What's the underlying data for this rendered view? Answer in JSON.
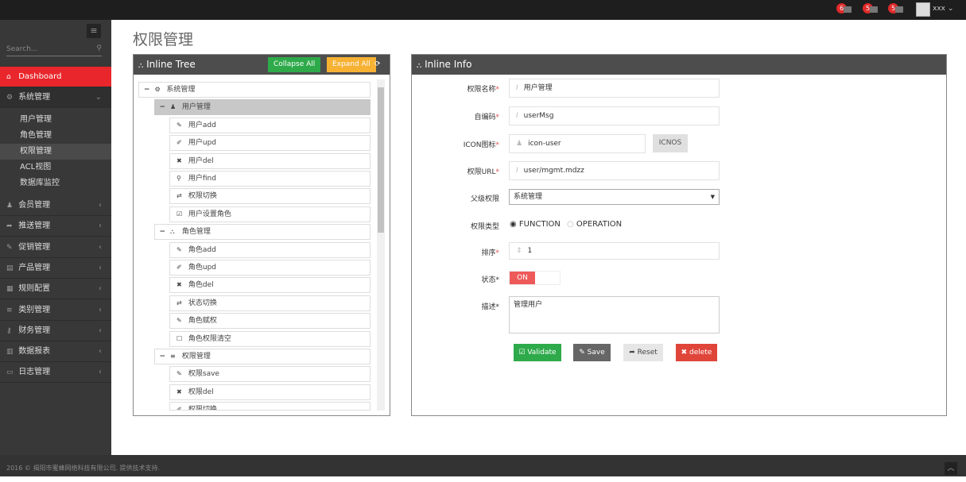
{
  "topbar": {
    "notifications": [
      {
        "count": "6",
        "icon": "bell-icon"
      },
      {
        "count": "5",
        "icon": "envelope-icon"
      },
      {
        "count": "5",
        "icon": "tasks-icon"
      }
    ],
    "user": "xxx"
  },
  "sidebar": {
    "search_placeholder": "Search...",
    "active": {
      "label": "Dashboard",
      "icon": "home-icon"
    },
    "open_group": {
      "label": "系统管理",
      "icon": "cogs-icon",
      "children": [
        "用户管理",
        "角色管理",
        "权限管理",
        "ACL视图",
        "数据库监控"
      ],
      "selected": "权限管理"
    },
    "items": [
      {
        "label": "会员管理",
        "icon": "user-icon"
      },
      {
        "label": "推送管理",
        "icon": "share-icon"
      },
      {
        "label": "促销管理",
        "icon": "pencil-icon"
      },
      {
        "label": "产品管理",
        "icon": "book-icon"
      },
      {
        "label": "规则配置",
        "icon": "list-alt-icon"
      },
      {
        "label": "类别管理",
        "icon": "bars-icon"
      },
      {
        "label": "财务管理",
        "icon": "key-icon"
      },
      {
        "label": "数据报表",
        "icon": "bar-chart-icon"
      },
      {
        "label": "日志管理",
        "icon": "credit-card-icon"
      }
    ]
  },
  "page_title": "权限管理",
  "tree": {
    "title": "Inline Tree",
    "collapse_label": "Collapse All",
    "expand_label": "Expand All",
    "rows": [
      {
        "level": 0,
        "label": "系统管理",
        "icon": "cogs-icon",
        "toggle": "−"
      },
      {
        "level": 1,
        "label": "用户管理",
        "icon": "user-icon",
        "toggle": "−",
        "selected": true
      },
      {
        "level": 2,
        "label": "用户add",
        "icon": "pencil-icon"
      },
      {
        "level": 2,
        "label": "用户upd",
        "icon": "edit-icon"
      },
      {
        "level": 2,
        "label": "用户del",
        "icon": "times-icon"
      },
      {
        "level": 2,
        "label": "用户find",
        "icon": "search-icon"
      },
      {
        "level": 2,
        "label": "权限切换",
        "icon": "retweet-icon"
      },
      {
        "level": 2,
        "label": "用户设置角色",
        "icon": "check-square-icon"
      },
      {
        "level": 1,
        "label": "角色管理",
        "icon": "sitemap-icon",
        "toggle": "−"
      },
      {
        "level": 2,
        "label": "角色add",
        "icon": "pencil-icon"
      },
      {
        "level": 2,
        "label": "角色upd",
        "icon": "edit-icon"
      },
      {
        "level": 2,
        "label": "角色del",
        "icon": "times-icon"
      },
      {
        "level": 2,
        "label": "状态切换",
        "icon": "retweet-icon"
      },
      {
        "level": 2,
        "label": "角色赋权",
        "icon": "pencil-icon"
      },
      {
        "level": 2,
        "label": "角色权限清空",
        "icon": "square-icon"
      },
      {
        "level": 1,
        "label": "权限管理",
        "icon": "bars-icon",
        "toggle": "−"
      },
      {
        "level": 2,
        "label": "权限save",
        "icon": "pencil-icon"
      },
      {
        "level": 2,
        "label": "权限del",
        "icon": "times-icon"
      },
      {
        "level": 2,
        "label": "权限切换",
        "icon": "edit-icon"
      }
    ]
  },
  "info": {
    "title": "Inline Info",
    "fields": {
      "name": {
        "label": "权限名称",
        "value": "用户管理"
      },
      "code": {
        "label": "自编码",
        "value": "userMsg"
      },
      "icon": {
        "label": "ICON图标",
        "value": "icon-user",
        "button": "ICNOS"
      },
      "url": {
        "label": "权限URL",
        "value": "user/mgmt.mdzz"
      },
      "parent": {
        "label": "父级权限",
        "value": "系统管理"
      },
      "type": {
        "label": "权限类型",
        "options": [
          "FUNCTION",
          "OPERATION"
        ],
        "selected": "FUNCTION"
      },
      "order": {
        "label": "排序",
        "value": "1"
      },
      "status": {
        "label": "状态",
        "value": "ON",
        "on": true
      },
      "desc": {
        "label": "描述",
        "value": "管理用户"
      }
    },
    "buttons": {
      "validate": "Validate",
      "save": "Save",
      "reset": "Reset",
      "delete": "delete"
    }
  },
  "footer": "2016 © 揭阳市蜜蜂网络科技有限公司. 提供技术支持.",
  "colors": {
    "accent_red": "#e8262b",
    "green": "#2eaa4a",
    "orange": "#f7b133",
    "dark_header": "#4d4d4d",
    "delete": "#e0453a"
  }
}
